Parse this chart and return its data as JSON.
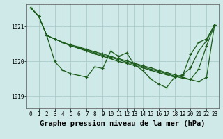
{
  "background_color": "#cfe8e8",
  "grid_color": "#aacccc",
  "line_color": "#1a5c1a",
  "title": "Graphe pression niveau de la mer (hPa)",
  "xlim": [
    -0.5,
    23.5
  ],
  "ylim": [
    1018.65,
    1021.65
  ],
  "yticks": [
    1019,
    1020,
    1021
  ],
  "xticks": [
    0,
    1,
    2,
    3,
    4,
    5,
    6,
    7,
    8,
    9,
    10,
    11,
    12,
    13,
    14,
    15,
    16,
    17,
    18,
    19,
    20,
    21,
    22,
    23
  ],
  "lines": [
    [
      1021.55,
      1021.3,
      1020.75,
      1020.0,
      1019.75,
      1019.65,
      1019.6,
      1019.55,
      1019.85,
      1019.8,
      1020.3,
      1020.15,
      1020.25,
      1019.9,
      1019.75,
      1019.5,
      1019.35,
      1019.25,
      1019.55,
      1019.6,
      1020.2,
      1020.55,
      1020.65,
      1021.05
    ],
    [
      1021.55,
      1021.3,
      1020.75,
      1020.65,
      1020.55,
      1020.45,
      1020.38,
      1020.3,
      1020.22,
      1020.15,
      1020.08,
      1020.0,
      1019.95,
      1019.88,
      1019.82,
      1019.75,
      1019.68,
      1019.62,
      1019.55,
      1019.62,
      1019.82,
      1020.3,
      1020.6,
      1021.05
    ],
    [
      1021.55,
      1021.3,
      1020.75,
      1020.65,
      1020.55,
      1020.45,
      1020.4,
      1020.32,
      1020.25,
      1020.18,
      1020.12,
      1020.05,
      1019.98,
      1019.92,
      1019.85,
      1019.78,
      1019.72,
      1019.65,
      1019.58,
      1019.52,
      1019.48,
      1019.78,
      1020.45,
      1021.05
    ],
    [
      1021.55,
      1021.3,
      1020.75,
      1020.65,
      1020.55,
      1020.48,
      1020.42,
      1020.35,
      1020.28,
      1020.22,
      1020.15,
      1020.08,
      1020.02,
      1019.95,
      1019.88,
      1019.82,
      1019.75,
      1019.68,
      1019.62,
      1019.55,
      1019.48,
      1019.42,
      1019.55,
      1021.05
    ]
  ],
  "marker": "+",
  "markersize": 3,
  "linewidth": 0.9,
  "tick_fontsize": 5.5,
  "title_fontsize": 7.5
}
